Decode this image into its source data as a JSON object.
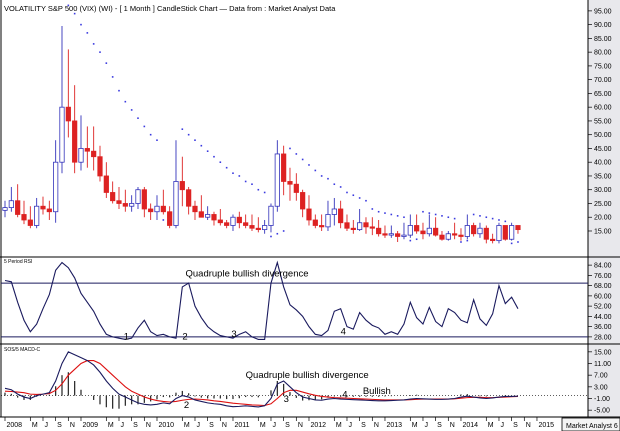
{
  "chart_data": {
    "type": "candlestick",
    "title": "VOLATILITY S&P 500 (VIX) (WI) -  [ 1 Month ] CandleStick Chart — Data from : Market Analyst Data",
    "watermark": "Market Analyst 6",
    "colors": {
      "up": "#3333bb",
      "down": "#dd2222",
      "dots": "#3a3adf",
      "redline": "#dd1111",
      "navy": "#1a1a5e",
      "axisbg": "#e8e8ec"
    },
    "x_axis": {
      "months": [
        {
          "label": "2008",
          "i": 0
        },
        {
          "label": "M",
          "i": 4
        },
        {
          "label": "J",
          "i": 6
        },
        {
          "label": "S",
          "i": 8
        },
        {
          "label": "N",
          "i": 10
        },
        {
          "label": "2009",
          "i": 12
        },
        {
          "label": "M",
          "i": 16
        },
        {
          "label": "J",
          "i": 18
        },
        {
          "label": "S",
          "i": 20
        },
        {
          "label": "N",
          "i": 22
        },
        {
          "label": "2010",
          "i": 24
        },
        {
          "label": "M",
          "i": 28
        },
        {
          "label": "J",
          "i": 30
        },
        {
          "label": "S",
          "i": 32
        },
        {
          "label": "N",
          "i": 34
        },
        {
          "label": "2011",
          "i": 36
        },
        {
          "label": "M",
          "i": 40
        },
        {
          "label": "J",
          "i": 42
        },
        {
          "label": "S",
          "i": 44
        },
        {
          "label": "N",
          "i": 46
        },
        {
          "label": "2012",
          "i": 48
        },
        {
          "label": "M",
          "i": 52
        },
        {
          "label": "J",
          "i": 54
        },
        {
          "label": "S",
          "i": 56
        },
        {
          "label": "N",
          "i": 58
        },
        {
          "label": "2013",
          "i": 60
        },
        {
          "label": "M",
          "i": 64
        },
        {
          "label": "J",
          "i": 66
        },
        {
          "label": "S",
          "i": 68
        },
        {
          "label": "N",
          "i": 70
        },
        {
          "label": "2014",
          "i": 72
        },
        {
          "label": "M",
          "i": 76
        },
        {
          "label": "J",
          "i": 78
        },
        {
          "label": "S",
          "i": 80
        },
        {
          "label": "N",
          "i": 82
        },
        {
          "label": "2015",
          "i": 84
        }
      ]
    },
    "price": {
      "ylim": [
        7,
        97.5
      ],
      "ticks": [
        "95.00",
        "90.00",
        "85.00",
        "80.00",
        "75.00",
        "70.00",
        "65.00",
        "60.00",
        "55.00",
        "50.00",
        "45.00",
        "40.00",
        "35.00",
        "30.00",
        "25.00",
        "20.00",
        "15.00"
      ],
      "candles": [
        [
          22.5,
          26,
          20,
          23.5
        ],
        [
          23.5,
          31,
          22,
          26
        ],
        [
          26,
          32,
          20,
          21
        ],
        [
          21,
          26,
          17.5,
          19
        ],
        [
          19,
          24,
          16,
          17
        ],
        [
          17,
          27,
          16,
          24
        ],
        [
          24,
          27.5,
          21,
          23
        ],
        [
          23,
          26,
          19,
          22
        ],
        [
          22,
          48,
          18,
          40
        ],
        [
          40,
          89.5,
          36,
          60
        ],
        [
          60,
          81,
          49,
          55
        ],
        [
          55,
          68,
          36,
          40
        ],
        [
          40,
          57,
          37,
          45
        ],
        [
          45,
          53,
          38,
          44
        ],
        [
          44,
          53,
          37,
          42
        ],
        [
          42,
          46,
          33,
          35
        ],
        [
          35,
          40,
          27,
          29
        ],
        [
          29,
          33,
          25,
          26
        ],
        [
          26,
          31,
          23,
          25
        ],
        [
          25,
          30,
          22,
          24
        ],
        [
          24,
          28,
          22,
          25
        ],
        [
          25,
          31,
          23,
          30
        ],
        [
          30,
          31,
          20,
          23
        ],
        [
          23,
          25,
          19,
          22
        ],
        [
          22,
          28,
          19,
          24
        ],
        [
          24,
          30,
          21,
          22
        ],
        [
          22,
          24,
          16,
          17
        ],
        [
          17,
          48,
          16,
          33
        ],
        [
          33,
          42,
          24,
          30
        ],
        [
          30,
          31,
          21,
          24
        ],
        [
          24,
          26,
          19,
          22
        ],
        [
          22,
          28,
          20,
          20
        ],
        [
          20,
          24,
          19,
          21
        ],
        [
          21,
          22,
          17,
          19
        ],
        [
          19,
          23,
          17,
          18
        ],
        [
          18,
          19,
          16,
          17
        ],
        [
          17,
          21,
          15,
          20
        ],
        [
          20,
          22,
          16,
          18
        ],
        [
          18,
          21,
          16,
          17
        ],
        [
          17,
          21,
          15,
          16
        ],
        [
          16,
          20,
          14.5,
          15.5
        ],
        [
          15.5,
          19,
          14,
          17
        ],
        [
          17,
          25,
          14.5,
          24
        ],
        [
          24,
          48,
          22,
          43
        ],
        [
          43,
          46,
          28,
          33
        ],
        [
          33,
          38,
          26,
          32
        ],
        [
          32,
          36,
          26,
          29
        ],
        [
          29,
          30,
          20,
          23
        ],
        [
          23,
          28,
          17,
          19
        ],
        [
          19,
          21,
          16,
          17
        ],
        [
          17,
          21,
          15,
          16.5
        ],
        [
          16.5,
          26,
          15,
          21
        ],
        [
          21,
          27,
          17,
          23
        ],
        [
          23,
          26,
          16,
          18
        ],
        [
          18,
          21,
          15,
          16
        ],
        [
          16,
          19,
          14,
          15.5
        ],
        [
          15.5,
          23,
          15,
          18
        ],
        [
          18,
          20,
          14,
          16.5
        ],
        [
          16.5,
          20,
          13.5,
          16
        ],
        [
          16,
          19,
          13,
          14
        ],
        [
          14,
          17,
          12.5,
          13.5
        ],
        [
          13.5,
          17,
          12.5,
          14
        ],
        [
          14,
          15,
          11,
          13
        ],
        [
          13,
          18,
          12,
          13.5
        ],
        [
          13.5,
          21,
          12.5,
          17
        ],
        [
          17,
          21,
          14,
          15
        ],
        [
          15,
          18,
          12,
          14
        ],
        [
          14,
          21,
          13,
          16
        ],
        [
          16,
          20,
          13,
          13.5
        ],
        [
          13.5,
          15,
          11.5,
          12
        ],
        [
          12,
          15,
          11.5,
          14
        ],
        [
          14,
          18,
          12,
          13.5
        ],
        [
          13.5,
          16,
          11.5,
          13
        ],
        [
          13,
          21,
          12,
          17
        ],
        [
          17,
          18,
          13,
          14
        ],
        [
          14,
          18,
          12.5,
          16
        ],
        [
          16,
          17,
          10.5,
          12
        ],
        [
          12,
          14,
          10.5,
          11.5
        ],
        [
          11.5,
          18,
          10.5,
          17
        ],
        [
          17,
          17,
          11.5,
          12
        ],
        [
          12,
          18,
          11.5,
          17
        ],
        [
          17,
          17,
          14,
          15.5
        ]
      ],
      "dots": [
        [
          10,
          97
        ],
        [
          11,
          94
        ],
        [
          12,
          90
        ],
        [
          13,
          87
        ],
        [
          14,
          83
        ],
        [
          15,
          80
        ],
        [
          16,
          76
        ],
        [
          17,
          71
        ],
        [
          18,
          66
        ],
        [
          19,
          62
        ],
        [
          20,
          59
        ],
        [
          21,
          56
        ],
        [
          22,
          53
        ],
        [
          23,
          50
        ],
        [
          24,
          48
        ],
        [
          25,
          19
        ],
        [
          26,
          19.5
        ],
        [
          27,
          20
        ],
        [
          28,
          52
        ],
        [
          29,
          50
        ],
        [
          30,
          48
        ],
        [
          31,
          46
        ],
        [
          32,
          44
        ],
        [
          33,
          42
        ],
        [
          34,
          40
        ],
        [
          35,
          38
        ],
        [
          36,
          36
        ],
        [
          37,
          35
        ],
        [
          38,
          33
        ],
        [
          39,
          32
        ],
        [
          40,
          30
        ],
        [
          41,
          29
        ],
        [
          42,
          13
        ],
        [
          43,
          14
        ],
        [
          44,
          15
        ],
        [
          45,
          45
        ],
        [
          46,
          43
        ],
        [
          47,
          41
        ],
        [
          48,
          39
        ],
        [
          49,
          37
        ],
        [
          50,
          35
        ],
        [
          51,
          34
        ],
        [
          52,
          32
        ],
        [
          53,
          31
        ],
        [
          54,
          29
        ],
        [
          55,
          28
        ],
        [
          56,
          27
        ],
        [
          57,
          26
        ],
        [
          58,
          23
        ],
        [
          59,
          22
        ],
        [
          60,
          21.5
        ],
        [
          61,
          21
        ],
        [
          62,
          20.5
        ],
        [
          63,
          20
        ],
        [
          64,
          11.5
        ],
        [
          65,
          12
        ],
        [
          66,
          22
        ],
        [
          67,
          21.5
        ],
        [
          68,
          21
        ],
        [
          69,
          20.5
        ],
        [
          70,
          20
        ],
        [
          71,
          19.5
        ],
        [
          72,
          11
        ],
        [
          73,
          11.5
        ],
        [
          74,
          21
        ],
        [
          75,
          20.5
        ],
        [
          76,
          20
        ],
        [
          77,
          19.5
        ],
        [
          78,
          19
        ],
        [
          79,
          18.5
        ],
        [
          80,
          10.5
        ],
        [
          81,
          11
        ]
      ]
    },
    "rsi": {
      "label": "5 Period RSI",
      "ticks": [
        "84.00",
        "76.00",
        "68.00",
        "60.00",
        "52.00",
        "44.00",
        "36.00",
        "28.00"
      ],
      "ylim": [
        24,
        88
      ],
      "hlines": [
        70,
        28
      ],
      "values": [
        72,
        71,
        55,
        41,
        32,
        38,
        50,
        61,
        80,
        86,
        82,
        74,
        62,
        55,
        48,
        38,
        30,
        28,
        27,
        26,
        27,
        35,
        41,
        32,
        29,
        30,
        28,
        27,
        67,
        70,
        52,
        43,
        36,
        32,
        29,
        28,
        27,
        30,
        32,
        28,
        26,
        26,
        70,
        86,
        67,
        53,
        49,
        44,
        36,
        30,
        29,
        33,
        48,
        50,
        36,
        34,
        47,
        41,
        37,
        35,
        30,
        32,
        30,
        38,
        55,
        43,
        38,
        51,
        40,
        36,
        50,
        47,
        41,
        39,
        57,
        42,
        37,
        46,
        68,
        54,
        59,
        50
      ]
    },
    "macd": {
      "label": "SOS/5 MACD-C",
      "ticks": [
        "15.00",
        "11.00",
        "7.00",
        "3.00",
        "-1.00",
        "-5.00"
      ],
      "ylim": [
        -7,
        17
      ],
      "macd_line": [
        2.5,
        2,
        0.5,
        -0.5,
        -1,
        0,
        0.5,
        1,
        5,
        11,
        15,
        14,
        13,
        12,
        10.5,
        8,
        5,
        2.5,
        0.5,
        -0.5,
        -1.5,
        -2.5,
        -3,
        -3.2,
        -3,
        -2.5,
        -2.8,
        -1,
        0,
        -0.5,
        -1.5,
        -2,
        -2.5,
        -2.8,
        -3,
        -3.5,
        -3.8,
        -3.7,
        -3.5,
        -3.7,
        -3.9,
        -3.5,
        -1,
        4,
        5,
        3,
        1,
        -0.5,
        -1,
        -1.5,
        -1.6,
        -1.2,
        -1,
        -1.2,
        -1.3,
        -1.4,
        -1.5,
        -1.6,
        -1.7,
        -1.8,
        -1.8,
        -1.7,
        -1.6,
        -1.5,
        -1.2,
        -1,
        -1.1,
        -1.2,
        -1.3,
        -1.3,
        -1.2,
        -1,
        -0.5,
        -0.2,
        -0.5,
        -0.8,
        -1,
        -0.8,
        -0.5,
        -0.3,
        -0.3,
        -0.2
      ],
      "signal_line": [
        1.5,
        1.4,
        1.2,
        1,
        0.5,
        0.4,
        0.5,
        0.7,
        1.8,
        4,
        7,
        9,
        11,
        12,
        12,
        11,
        9,
        7,
        5,
        3,
        1.5,
        0.5,
        -0.5,
        -1.2,
        -1.7,
        -2,
        -2.2,
        -2,
        -1.6,
        -1.3,
        -1.2,
        -1.3,
        -1.5,
        -1.8,
        -2,
        -2.3,
        -2.6,
        -2.8,
        -3,
        -3.2,
        -3.3,
        -3.4,
        -2.8,
        -1,
        1,
        1.8,
        1.8,
        1.2,
        0.6,
        0.1,
        -0.3,
        -0.5,
        -0.7,
        -0.8,
        -0.9,
        -1,
        -1.1,
        -1.2,
        -1.3,
        -1.4,
        -1.5,
        -1.5,
        -1.5,
        -1.5,
        -1.4,
        -1.3,
        -1.2,
        -1.2,
        -1.2,
        -1.2,
        -1.2,
        -1.1,
        -0.9,
        -0.7,
        -0.6,
        -0.6,
        -0.7,
        -0.7,
        -0.6,
        -0.5,
        -0.4,
        -0.3
      ]
    },
    "annotations": [
      {
        "panel": "rsi",
        "text": "Quadruple bullish divergence",
        "i": 57,
        "v": 75
      },
      {
        "panel": "rsi",
        "text": "1",
        "i": 37.5,
        "v": 26
      },
      {
        "panel": "rsi",
        "text": "2",
        "i": 56,
        "v": 26
      },
      {
        "panel": "rsi",
        "text": "3",
        "i": 71.5,
        "v": 28
      },
      {
        "panel": "rsi",
        "text": "4",
        "i": 106,
        "v": 30
      },
      {
        "panel": "macd",
        "text": "Quadruple bullish divergence",
        "i": 76,
        "v": 6
      },
      {
        "panel": "macd",
        "text": "Bullish",
        "i": 113,
        "v": 0.6
      },
      {
        "panel": "macd",
        "text": "2",
        "i": 56.5,
        "v": -4.2
      },
      {
        "panel": "macd",
        "text": "3",
        "i": 88,
        "v": -2.2
      },
      {
        "panel": "macd",
        "text": "4",
        "i": 106.5,
        "v": -0.6
      }
    ]
  }
}
